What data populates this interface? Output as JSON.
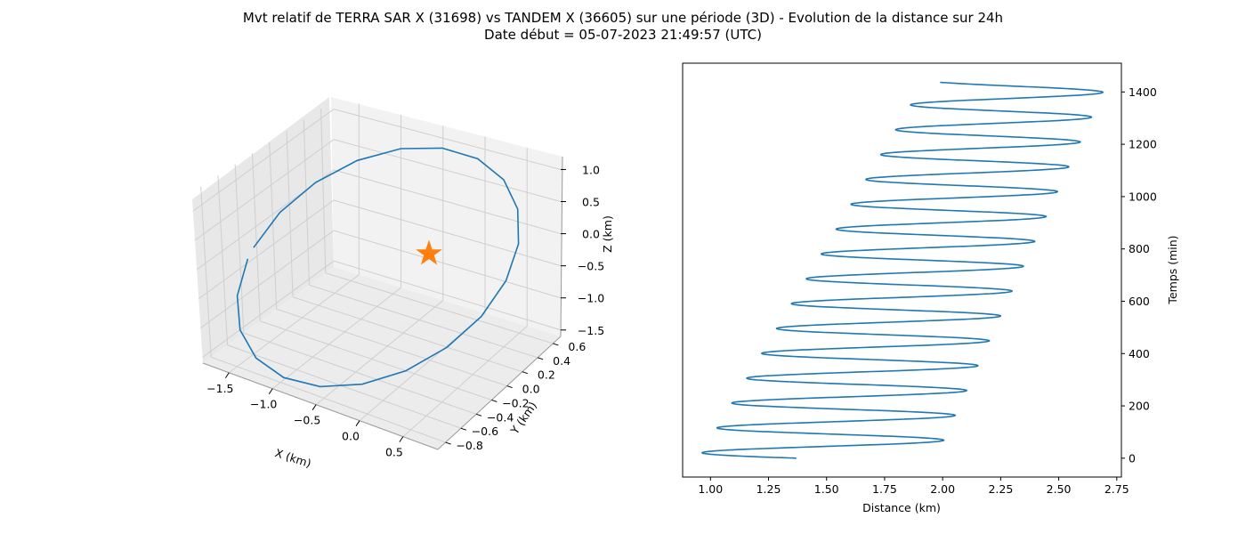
{
  "figure": {
    "title_line1": "Mvt relatif de TERRA SAR X (31698) vs TANDEM X (36605) sur une période (3D) - Evolution de la distance sur 24h",
    "title_line2": "Date début = 05-07-2023 21:49:57 (UTC)"
  },
  "chart_data": [
    {
      "type": "line",
      "projection": "3d",
      "xlabel": "X (km)",
      "ylabel": "Y (km)",
      "zlabel": "Z (km)",
      "x_ticks": [
        -1.5,
        -1.0,
        -0.5,
        0.0,
        0.5
      ],
      "y_ticks": [
        -0.8,
        -0.6,
        -0.4,
        -0.2,
        0.0,
        0.2,
        0.4,
        0.6
      ],
      "z_ticks": [
        -1.5,
        -1.0,
        -0.5,
        0.0,
        0.5,
        1.0
      ],
      "xlim": [
        -1.8,
        0.9
      ],
      "ylim": [
        -0.9,
        0.7
      ],
      "zlim": [
        -1.6,
        1.2
      ],
      "series": [
        {
          "color": "#1f77b4",
          "shape": "closed relative-motion ellipse",
          "x_range": [
            -1.8,
            0.85
          ],
          "z_range": [
            -1.55,
            1.1
          ]
        },
        {
          "marker": "star",
          "color": "#ff7f0e",
          "point": [
            0,
            0,
            0
          ]
        }
      ],
      "grid": true
    },
    {
      "type": "line",
      "xlabel": "Distance (km)",
      "ylabel": "Temps (min)",
      "x_ticks": [
        1.0,
        1.25,
        1.5,
        1.75,
        2.0,
        2.25,
        2.5,
        2.75
      ],
      "y_ticks": [
        0,
        200,
        400,
        600,
        800,
        1000,
        1200,
        1400
      ],
      "xlim": [
        0.88,
        2.77
      ],
      "ylim": [
        -72,
        1510
      ],
      "yaxis_position": "right",
      "series": [
        {
          "color": "#1f77b4",
          "description": "oscillating distance, period ~95 min, min rising 0.95→1.92 km, max rising 1.97→2.71 km",
          "start": [
            1.55,
            0
          ],
          "end": [
            1.93,
            1437
          ],
          "period_min": 95,
          "minima": [
            0.95,
            1.92
          ],
          "maxima": [
            1.97,
            2.71
          ]
        }
      ],
      "grid": false
    }
  ]
}
